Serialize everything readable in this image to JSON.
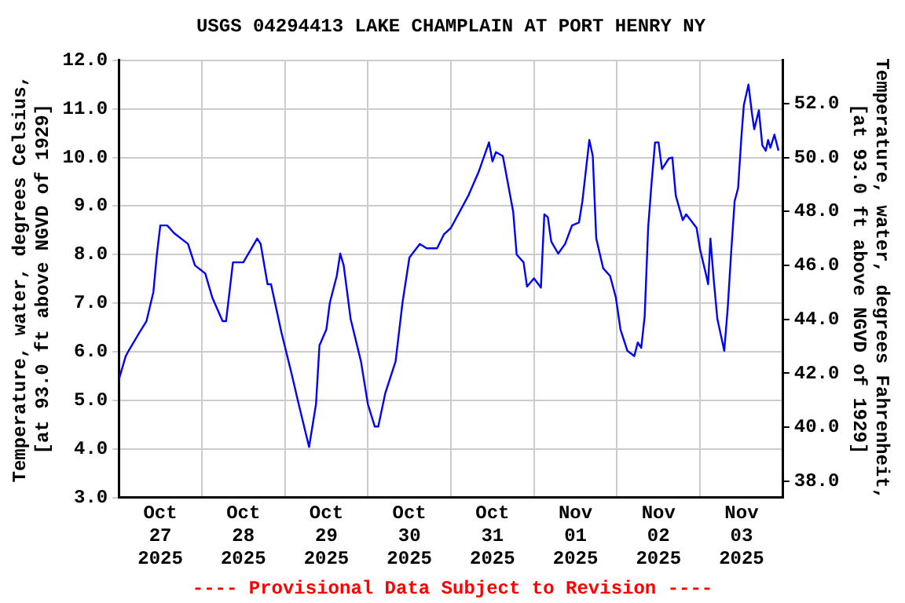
{
  "chart_data": {
    "type": "line",
    "title": "USGS 04294413 LAKE CHAMPLAIN AT PORT HENRY NY",
    "ylabel": "Temperature, water, degrees Celsius,\n[at 93.0 ft above NGVD of 1929]",
    "y2label": "Temperature, water, degrees Fahrenheit,\n[at 93.0 ft above NGVD of 1929]",
    "annotations": [
      "---- Provisional Data Subject to Revision ----"
    ],
    "x": [
      "2025-10-27T00:00",
      "2025-10-27T02:00",
      "2025-10-27T03:00",
      "2025-10-27T06:00",
      "2025-10-27T08:00",
      "2025-10-27T10:00",
      "2025-10-27T11:00",
      "2025-10-27T12:00",
      "2025-10-27T14:00",
      "2025-10-27T16:00",
      "2025-10-27T20:00",
      "2025-10-27T22:00",
      "2025-10-28T01:00",
      "2025-10-28T03:00",
      "2025-10-28T06:00",
      "2025-10-28T07:00",
      "2025-10-28T09:00",
      "2025-10-28T12:00",
      "2025-10-28T16:00",
      "2025-10-28T17:00",
      "2025-10-28T19:00",
      "2025-10-28T20:00",
      "2025-10-28T23:00",
      "2025-10-29T02:00",
      "2025-10-29T04:00",
      "2025-10-29T07:00",
      "2025-10-29T09:00",
      "2025-10-29T10:00",
      "2025-10-29T12:00",
      "2025-10-29T13:00",
      "2025-10-29T15:00",
      "2025-10-29T16:00",
      "2025-10-29T17:00",
      "2025-10-29T19:00",
      "2025-10-29T22:00",
      "2025-10-30T00:00",
      "2025-10-30T02:00",
      "2025-10-30T03:00",
      "2025-10-30T05:00",
      "2025-10-30T08:00",
      "2025-10-30T10:00",
      "2025-10-30T12:00",
      "2025-10-30T15:00",
      "2025-10-30T17:00",
      "2025-10-30T20:00",
      "2025-10-30T22:00",
      "2025-10-31T00:00",
      "2025-10-31T05:00",
      "2025-10-31T08:00",
      "2025-10-31T11:00",
      "2025-10-31T12:00",
      "2025-10-31T13:00",
      "2025-10-31T15:00",
      "2025-10-31T16:00",
      "2025-10-31T18:00",
      "2025-10-31T19:00",
      "2025-10-31T21:00",
      "2025-10-31T22:00",
      "2025-11-01T00:00",
      "2025-11-01T02:00",
      "2025-11-01T03:00",
      "2025-11-01T04:00",
      "2025-11-01T05:00",
      "2025-11-01T07:00",
      "2025-11-01T09:00",
      "2025-11-01T11:00",
      "2025-11-01T13:00",
      "2025-11-01T14:00",
      "2025-11-01T16:00",
      "2025-11-01T17:00",
      "2025-11-01T18:00",
      "2025-11-01T20:00",
      "2025-11-01T22:00",
      "2025-11-01T23:40",
      "2025-11-02T01:00",
      "2025-11-02T03:00",
      "2025-11-02T05:00",
      "2025-11-02T06:00",
      "2025-11-02T07:00",
      "2025-11-02T08:00",
      "2025-11-02T09:00",
      "2025-11-02T10:00",
      "2025-11-02T11:00",
      "2025-11-02T12:00",
      "2025-11-02T13:00",
      "2025-11-02T15:00",
      "2025-11-02T16:00",
      "2025-11-02T17:00",
      "2025-11-02T19:00",
      "2025-11-02T20:00",
      "2025-11-02T23:00",
      "2025-11-03T00:00",
      "2025-11-03T01:50",
      "2025-11-03T02:20",
      "2025-11-03T03:00",
      "2025-11-03T04:00",
      "2025-11-03T05:00",
      "2025-11-03T07:00",
      "2025-11-03T08:00",
      "2025-11-03T09:00",
      "2025-11-03T10:00",
      "2025-11-03T11:00",
      "2025-11-03T12:00",
      "2025-11-03T12:40",
      "2025-11-03T14:00",
      "2025-11-03T15:00",
      "2025-11-03T15:40",
      "2025-11-03T17:00",
      "2025-11-03T18:00",
      "2025-11-03T19:00",
      "2025-11-03T19:40",
      "2025-11-03T20:20",
      "2025-11-03T21:30",
      "2025-11-03T22:40"
    ],
    "series": [
      {
        "color": "#0000ff",
        "values": [
          5.42,
          5.91,
          6.04,
          6.4,
          6.63,
          7.23,
          8.0,
          8.6,
          8.6,
          8.44,
          8.22,
          7.78,
          7.61,
          7.12,
          6.63,
          6.63,
          7.84,
          7.84,
          8.33,
          8.22,
          7.39,
          7.39,
          6.4,
          5.53,
          4.92,
          4.04,
          4.92,
          6.13,
          6.46,
          7.01,
          7.56,
          8.02,
          7.78,
          6.68,
          5.8,
          4.92,
          4.46,
          4.46,
          5.14,
          5.8,
          7.01,
          7.94,
          8.22,
          8.13,
          8.13,
          8.42,
          8.55,
          9.21,
          9.7,
          10.31,
          9.92,
          10.11,
          10.03,
          9.65,
          8.88,
          8.0,
          7.84,
          7.34,
          7.51,
          7.32,
          8.83,
          8.77,
          8.27,
          8.02,
          8.22,
          8.6,
          8.66,
          9.1,
          10.36,
          10.03,
          8.33,
          7.72,
          7.56,
          7.12,
          6.46,
          6.02,
          5.91,
          6.19,
          6.08,
          6.73,
          8.55,
          9.48,
          10.31,
          10.31,
          9.76,
          9.98,
          10.0,
          9.21,
          8.71,
          8.83,
          8.55,
          8.11,
          7.56,
          7.39,
          8.33,
          7.45,
          6.68,
          6.02,
          6.9,
          8.05,
          9.1,
          9.37,
          10.47,
          11.08,
          11.5,
          10.91,
          10.58,
          10.97,
          10.25,
          10.14,
          10.36,
          10.2,
          10.47,
          10.14
        ]
      }
    ],
    "xlim": [
      "2025-10-27T00:00",
      "2025-11-04T00:00"
    ],
    "xticks": [
      {
        "value": "2025-10-27T12:00",
        "label": "Oct\n27\n2025"
      },
      {
        "value": "2025-10-28T12:00",
        "label": "Oct\n28\n2025"
      },
      {
        "value": "2025-10-29T12:00",
        "label": "Oct\n29\n2025"
      },
      {
        "value": "2025-10-30T12:00",
        "label": "Oct\n30\n2025"
      },
      {
        "value": "2025-10-31T12:00",
        "label": "Oct\n31\n2025"
      },
      {
        "value": "2025-11-01T12:00",
        "label": "Nov\n01\n2025"
      },
      {
        "value": "2025-11-02T12:00",
        "label": "Nov\n02\n2025"
      },
      {
        "value": "2025-11-03T12:00",
        "label": "Nov\n03\n2025"
      },
      {
        "value": "2025-10-28T00:00",
        "label": null
      },
      {
        "value": "2025-10-29T00:00",
        "label": null
      },
      {
        "value": "2025-10-30T00:00",
        "label": null
      },
      {
        "value": "2025-10-31T00:00",
        "label": null
      },
      {
        "value": "2025-11-01T00:00",
        "label": null
      },
      {
        "value": "2025-11-02T00:00",
        "label": null
      },
      {
        "value": "2025-11-03T00:00",
        "label": null
      }
    ],
    "ylim": [
      3,
      12
    ],
    "yticks": [
      {
        "value": 3,
        "label": "3.0"
      },
      {
        "value": 4,
        "label": "4.0"
      },
      {
        "value": 5,
        "label": "5.0"
      },
      {
        "value": 6,
        "label": "6.0"
      },
      {
        "value": 7,
        "label": "7.0"
      },
      {
        "value": 8,
        "label": "8.0"
      },
      {
        "value": 9,
        "label": "9.0"
      },
      {
        "value": 10,
        "label": "10.0"
      },
      {
        "value": 11,
        "label": "11.0"
      },
      {
        "value": 12,
        "label": "12.0"
      }
    ],
    "y2lim": [
      37.4,
      53.6
    ],
    "y2ticks": [
      {
        "value": 38,
        "label": "38.0"
      },
      {
        "value": 40,
        "label": "40.0"
      },
      {
        "value": 42,
        "label": "42.0"
      },
      {
        "value": 44,
        "label": "44.0"
      },
      {
        "value": 46,
        "label": "46.0"
      },
      {
        "value": 48,
        "label": "48.0"
      },
      {
        "value": 50,
        "label": "50.0"
      },
      {
        "value": 52,
        "label": "52.0"
      }
    ],
    "grid": true,
    "legend": false,
    "marker": "none",
    "line_style": "solid"
  }
}
